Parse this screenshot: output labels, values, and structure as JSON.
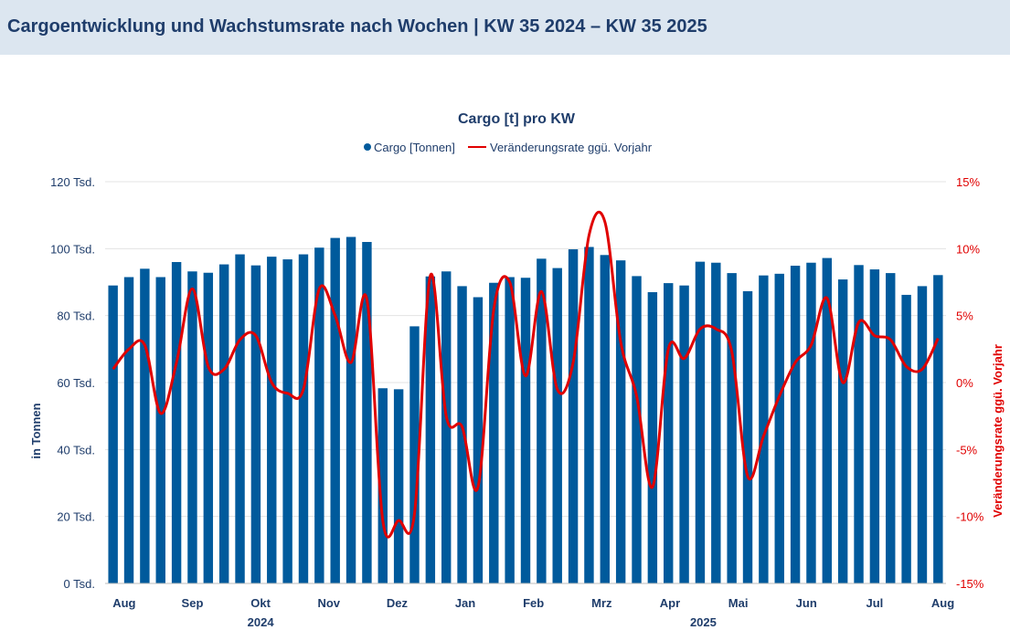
{
  "page": {
    "title": "Cargoentwicklung und Wachstumsrate nach Wochen | KW 35 2024 – KW 35 2025"
  },
  "colors": {
    "bar": "#005a9c",
    "line": "#e00000",
    "header_bg": "#dce6f0",
    "title": "#1f3d6b"
  },
  "chart_data": {
    "type": "bar",
    "title": "Cargo [t] pro KW",
    "legend": {
      "placement": "top-center",
      "bar_label": "Cargo [Tonnen]",
      "line_label": "Veränderungsrate ggü. Vorjahr"
    },
    "ylabel": "in Tonnen",
    "y2label": "Veränderungsrate ggü. Vorjahr",
    "ylim": [
      0,
      120000
    ],
    "y2lim": [
      -15,
      15
    ],
    "y_ticks": [
      {
        "value": 0,
        "label": "0 Tsd."
      },
      {
        "value": 20000,
        "label": "20 Tsd."
      },
      {
        "value": 40000,
        "label": "40 Tsd."
      },
      {
        "value": 60000,
        "label": "60 Tsd."
      },
      {
        "value": 80000,
        "label": "80 Tsd."
      },
      {
        "value": 100000,
        "label": "100 Tsd."
      },
      {
        "value": 120000,
        "label": "120 Tsd."
      }
    ],
    "y2_ticks": [
      {
        "value": -15,
        "label": "-15%"
      },
      {
        "value": -10,
        "label": "-10%"
      },
      {
        "value": -5,
        "label": "-5%"
      },
      {
        "value": 0,
        "label": "0%"
      },
      {
        "value": 5,
        "label": "5%"
      },
      {
        "value": 10,
        "label": "10%"
      },
      {
        "value": 15,
        "label": "15%"
      }
    ],
    "grid": true,
    "months": [
      {
        "label": "Aug",
        "week_index": 0.7
      },
      {
        "label": "Sep",
        "week_index": 5.0
      },
      {
        "label": "Okt",
        "week_index": 9.3
      },
      {
        "label": "Nov",
        "week_index": 13.6
      },
      {
        "label": "Dez",
        "week_index": 17.9
      },
      {
        "label": "Jan",
        "week_index": 22.2
      },
      {
        "label": "Feb",
        "week_index": 26.5
      },
      {
        "label": "Mrz",
        "week_index": 30.8
      },
      {
        "label": "Apr",
        "week_index": 35.1
      },
      {
        "label": "Mai",
        "week_index": 39.4
      },
      {
        "label": "Jun",
        "week_index": 43.7
      },
      {
        "label": "Jul",
        "week_index": 48.0
      },
      {
        "label": "Aug",
        "week_index": 52.3
      }
    ],
    "years": [
      {
        "label": "2024",
        "week_index": 9.3
      },
      {
        "label": "2025",
        "week_index": 37.2
      }
    ],
    "series": [
      {
        "name": "Cargo [Tonnen]",
        "type": "bar",
        "values": [
          89000,
          91500,
          94000,
          91500,
          96000,
          93200,
          92800,
          95300,
          98300,
          95000,
          97600,
          96800,
          98300,
          100300,
          103200,
          103500,
          102000,
          58300,
          58000,
          76800,
          91700,
          93200,
          88800,
          85500,
          89800,
          91500,
          91300,
          97000,
          94200,
          99800,
          100500,
          98100,
          96500,
          91800,
          87000,
          89700,
          89000,
          96100,
          95800,
          92700,
          87300,
          92000,
          92500,
          94900,
          95800,
          97200,
          90800,
          95100,
          93800,
          92700,
          86200,
          88800,
          92100
        ]
      },
      {
        "name": "Veränderungsrate ggü. Vorjahr",
        "type": "line",
        "axis": "right",
        "values": [
          1.0,
          2.5,
          2.8,
          -2.3,
          1.5,
          7.0,
          1.2,
          1.0,
          3.2,
          3.5,
          0.0,
          -0.8,
          -0.5,
          7.0,
          5.0,
          1.5,
          6.2,
          -10.3,
          -10.3,
          -9.8,
          8.0,
          -2.5,
          -3.3,
          -7.8,
          5.5,
          7.5,
          0.5,
          6.8,
          -0.5,
          1.5,
          11.0,
          12.0,
          3.0,
          -1.0,
          -7.8,
          2.5,
          1.8,
          4.0,
          4.0,
          2.3,
          -7.0,
          -4.0,
          -1.0,
          1.5,
          2.8,
          6.3,
          0.0,
          4.5,
          3.5,
          3.2,
          1.2,
          1.0,
          3.3
        ]
      }
    ]
  }
}
